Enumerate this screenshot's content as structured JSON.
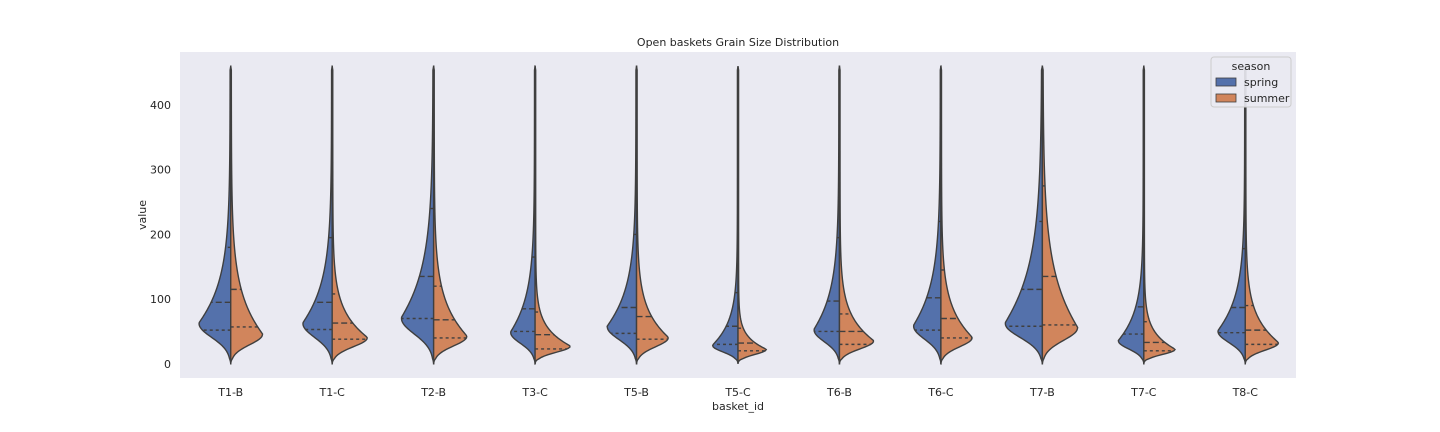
{
  "chart_data": {
    "type": "violin",
    "title": "Open baskets Grain Size Distribution",
    "xlabel": "basket_id",
    "ylabel": "value",
    "ylim": [
      -22,
      482
    ],
    "yticks": [
      0,
      100,
      200,
      300,
      400
    ],
    "grid": false,
    "split": true,
    "inner": "quartile",
    "categories": [
      "T1-B",
      "T1-C",
      "T2-B",
      "T3-C",
      "T5-B",
      "T5-C",
      "T6-B",
      "T6-C",
      "T7-B",
      "T7-C",
      "T8-C"
    ],
    "legend": {
      "title": "season",
      "position": "top-right",
      "entries": [
        {
          "name": "spring",
          "color": "#5471ab"
        },
        {
          "name": "summer",
          "color": "#d1855c"
        }
      ]
    },
    "series": [
      {
        "name": "spring",
        "color": "#5471ab",
        "quartiles": [
          [
            52,
            95,
            180
          ],
          [
            53,
            95,
            195
          ],
          [
            70,
            135,
            240
          ],
          [
            50,
            85,
            165
          ],
          [
            47,
            87,
            200
          ],
          [
            30,
            58,
            110
          ],
          [
            50,
            97,
            195
          ],
          [
            52,
            102,
            220
          ],
          [
            58,
            115,
            220
          ],
          [
            46,
            88,
            180
          ],
          [
            48,
            87,
            178
          ]
        ],
        "mode": [
          62,
          62,
          70,
          48,
          57,
          28,
          52,
          58,
          62,
          35,
          50
        ],
        "peak_width": [
          0.65,
          0.6,
          0.66,
          0.5,
          0.6,
          0.52,
          0.52,
          0.56,
          0.76,
          0.52,
          0.56
        ],
        "spread": [
          60,
          58,
          72,
          52,
          55,
          35,
          55,
          60,
          82,
          42,
          50
        ],
        "ymax": [
          460,
          460,
          460,
          460,
          460,
          460,
          460,
          460,
          460,
          460,
          460
        ]
      },
      {
        "name": "summer",
        "color": "#d1855c",
        "quartiles": [
          [
            57,
            115,
            252
          ],
          [
            38,
            63,
            108
          ],
          [
            40,
            68,
            120
          ],
          [
            23,
            45,
            80
          ],
          [
            38,
            73,
            195
          ],
          [
            20,
            32,
            55
          ],
          [
            30,
            50,
            77
          ],
          [
            40,
            70,
            145
          ],
          [
            60,
            135,
            275
          ],
          [
            20,
            33,
            65
          ],
          [
            30,
            52,
            90
          ]
        ],
        "mode": [
          45,
          40,
          42,
          27,
          40,
          22,
          35,
          40,
          55,
          22,
          32
        ],
        "peak_width": [
          0.65,
          0.72,
          0.68,
          0.72,
          0.65,
          0.58,
          0.7,
          0.64,
          0.72,
          0.64,
          0.68
        ],
        "spread": [
          58,
          38,
          50,
          26,
          40,
          18,
          36,
          44,
          78,
          24,
          38
        ],
        "ymax": [
          460,
          460,
          460,
          460,
          460,
          460,
          460,
          460,
          460,
          460,
          460
        ]
      }
    ]
  }
}
